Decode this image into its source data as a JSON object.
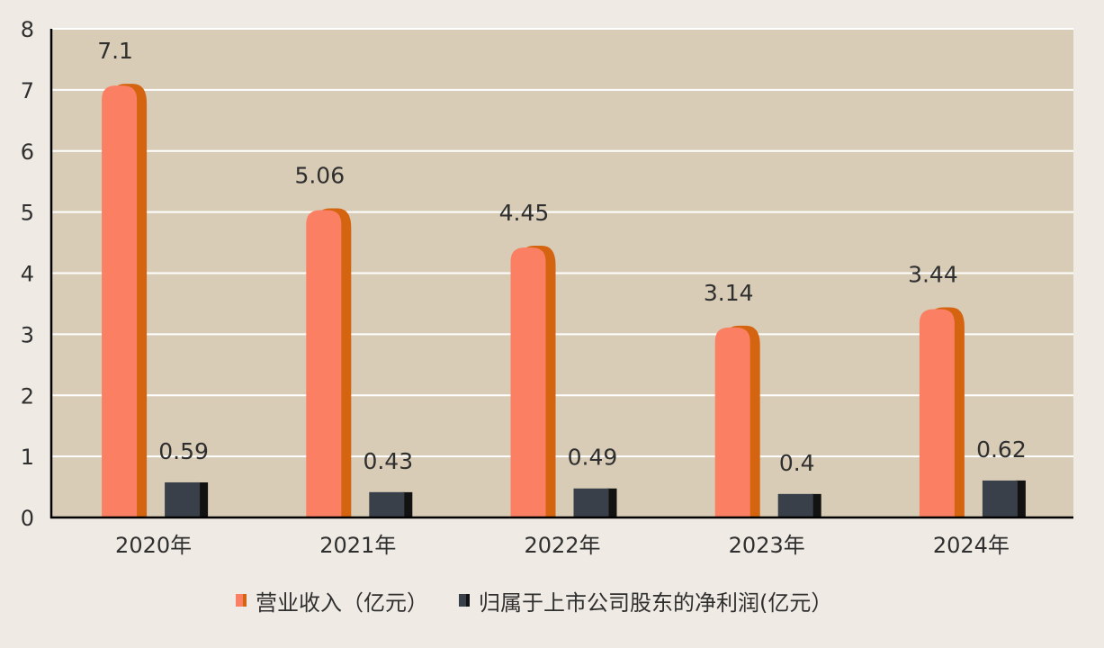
{
  "chart_data": {
    "type": "bar",
    "categories": [
      "2020年",
      "2021年",
      "2022年",
      "2023年",
      "2024年"
    ],
    "series": [
      {
        "name": "营业收入（亿元）",
        "values": [
          7.1,
          5.06,
          4.45,
          3.14,
          3.44
        ],
        "labels": [
          "7.1",
          "5.06",
          "4.45",
          "3.14",
          "3.44"
        ],
        "color": "#fb7f62",
        "side_color": "#d4640f"
      },
      {
        "name": "归属于上市公司股东的净利润(亿元）",
        "values": [
          0.59,
          0.43,
          0.49,
          0.4,
          0.62
        ],
        "labels": [
          "0.59",
          "0.43",
          "0.49",
          "0.4",
          "0.62"
        ],
        "color": "#3a4049",
        "side_color": "#121212"
      }
    ],
    "ylim": [
      0,
      8
    ],
    "yticks": [
      0,
      1,
      2,
      3,
      4,
      5,
      6,
      7,
      8
    ],
    "grid": true,
    "legend_position": "bottom",
    "plot_background": "#d8ccb6",
    "page_background": "#efebe4"
  }
}
